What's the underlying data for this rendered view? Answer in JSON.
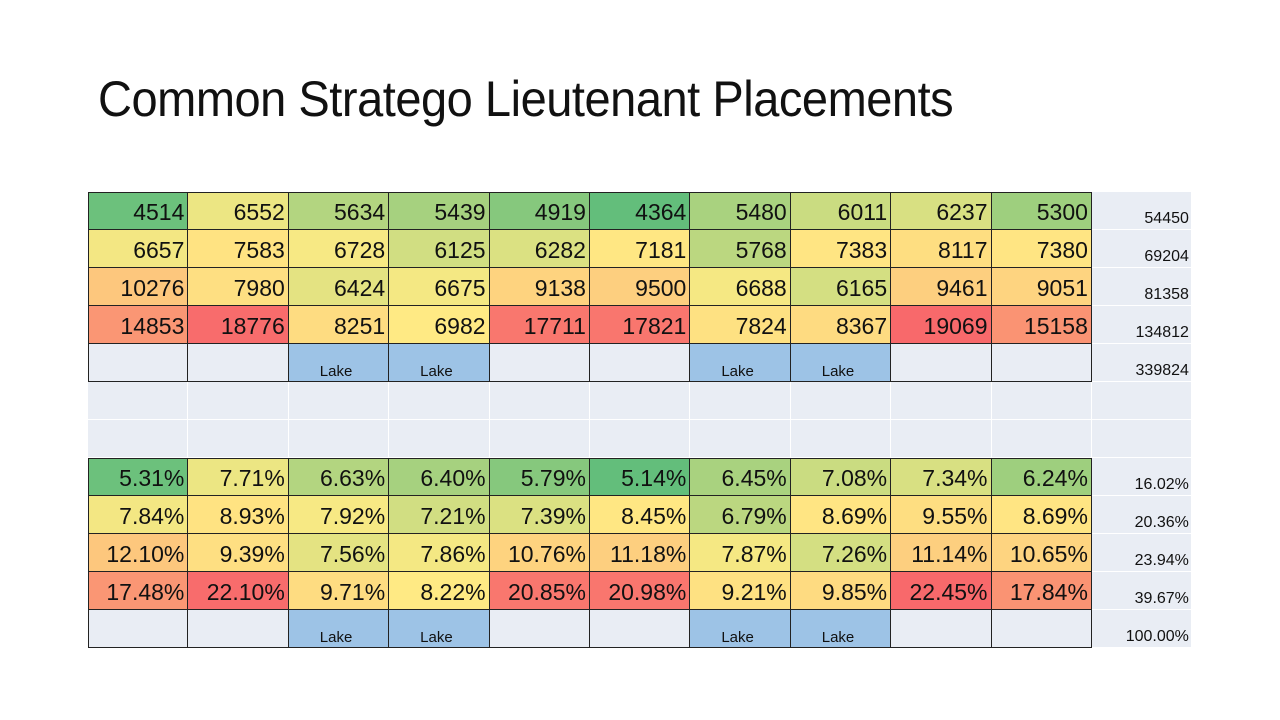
{
  "title": "Common Stratego Lieutenant Placements",
  "color_scale": {
    "min": "#63BE7B",
    "mid": "#FFEB84",
    "max": "#F8696B",
    "lake": "#9DC3E6",
    "empty": "#E9EDF4"
  },
  "counts_table": {
    "rows": [
      {
        "cells": [
          {
            "value": "4514",
            "color": "#6CC17C"
          },
          {
            "value": "6552",
            "color": "#ECE683"
          },
          {
            "value": "5634",
            "color": "#B3D580"
          },
          {
            "value": "5439",
            "color": "#A6D17F"
          },
          {
            "value": "4919",
            "color": "#86C87D"
          },
          {
            "value": "4364",
            "color": "#63BE7B"
          },
          {
            "value": "5480",
            "color": "#A9D27F"
          },
          {
            "value": "6011",
            "color": "#CADC81"
          },
          {
            "value": "6237",
            "color": "#D8E082"
          },
          {
            "value": "5300",
            "color": "#9ECF7E"
          }
        ],
        "total": "54450"
      },
      {
        "cells": [
          {
            "value": "6657",
            "color": "#F3E783"
          },
          {
            "value": "7583",
            "color": "#FFE382"
          },
          {
            "value": "6728",
            "color": "#F7E984"
          },
          {
            "value": "6125",
            "color": "#D1DE82"
          },
          {
            "value": "6282",
            "color": "#DBE182"
          },
          {
            "value": "7181",
            "color": "#FFE783"
          },
          {
            "value": "5768",
            "color": "#BBD780"
          },
          {
            "value": "7383",
            "color": "#FFE583"
          },
          {
            "value": "8117",
            "color": "#FEDE81"
          },
          {
            "value": "7380",
            "color": "#FFE583"
          }
        ],
        "total": "69204"
      },
      {
        "cells": [
          {
            "value": "10276",
            "color": "#FDC77D"
          },
          {
            "value": "7980",
            "color": "#FEDF82"
          },
          {
            "value": "6424",
            "color": "#E4E382"
          },
          {
            "value": "6675",
            "color": "#F4E883"
          },
          {
            "value": "9138",
            "color": "#FED37F"
          },
          {
            "value": "9500",
            "color": "#FDCF7F"
          },
          {
            "value": "6688",
            "color": "#F5E883"
          },
          {
            "value": "6165",
            "color": "#D4DF82"
          },
          {
            "value": "9461",
            "color": "#FDCF7F"
          },
          {
            "value": "9051",
            "color": "#FED480"
          }
        ],
        "total": "81358"
      },
      {
        "cells": [
          {
            "value": "14853",
            "color": "#FA9674"
          },
          {
            "value": "18776",
            "color": "#F86C6C"
          },
          {
            "value": "8251",
            "color": "#FEDC81"
          },
          {
            "value": "6982",
            "color": "#FFEA84"
          },
          {
            "value": "17711",
            "color": "#F9776E"
          },
          {
            "value": "17821",
            "color": "#F9766E"
          },
          {
            "value": "7824",
            "color": "#FEE182"
          },
          {
            "value": "8367",
            "color": "#FEDB81"
          },
          {
            "value": "19069",
            "color": "#F8696B"
          },
          {
            "value": "15158",
            "color": "#FA9373"
          }
        ],
        "total": "134812"
      }
    ],
    "lake_row": {
      "cells": [
        "",
        "",
        "Lake",
        "Lake",
        "",
        "",
        "Lake",
        "Lake",
        "",
        ""
      ],
      "total": "339824"
    }
  },
  "percent_table": {
    "rows": [
      {
        "cells": [
          {
            "value": "5.31%",
            "color": "#6CC17C"
          },
          {
            "value": "7.71%",
            "color": "#ECE683"
          },
          {
            "value": "6.63%",
            "color": "#B3D580"
          },
          {
            "value": "6.40%",
            "color": "#A6D17F"
          },
          {
            "value": "5.79%",
            "color": "#86C87D"
          },
          {
            "value": "5.14%",
            "color": "#63BE7B"
          },
          {
            "value": "6.45%",
            "color": "#A9D27F"
          },
          {
            "value": "7.08%",
            "color": "#CADC81"
          },
          {
            "value": "7.34%",
            "color": "#D8E082"
          },
          {
            "value": "6.24%",
            "color": "#9ECF7E"
          }
        ],
        "total": "16.02%"
      },
      {
        "cells": [
          {
            "value": "7.84%",
            "color": "#F3E783"
          },
          {
            "value": "8.93%",
            "color": "#FFE382"
          },
          {
            "value": "7.92%",
            "color": "#F7E984"
          },
          {
            "value": "7.21%",
            "color": "#D1DE82"
          },
          {
            "value": "7.39%",
            "color": "#DBE182"
          },
          {
            "value": "8.45%",
            "color": "#FFE783"
          },
          {
            "value": "6.79%",
            "color": "#BBD780"
          },
          {
            "value": "8.69%",
            "color": "#FFE583"
          },
          {
            "value": "9.55%",
            "color": "#FEDE81"
          },
          {
            "value": "8.69%",
            "color": "#FFE583"
          }
        ],
        "total": "20.36%"
      },
      {
        "cells": [
          {
            "value": "12.10%",
            "color": "#FDC77D"
          },
          {
            "value": "9.39%",
            "color": "#FEDF82"
          },
          {
            "value": "7.56%",
            "color": "#E4E382"
          },
          {
            "value": "7.86%",
            "color": "#F4E883"
          },
          {
            "value": "10.76%",
            "color": "#FED37F"
          },
          {
            "value": "11.18%",
            "color": "#FDCF7F"
          },
          {
            "value": "7.87%",
            "color": "#F5E883"
          },
          {
            "value": "7.26%",
            "color": "#D4DF82"
          },
          {
            "value": "11.14%",
            "color": "#FDCF7F"
          },
          {
            "value": "10.65%",
            "color": "#FED480"
          }
        ],
        "total": "23.94%"
      },
      {
        "cells": [
          {
            "value": "17.48%",
            "color": "#FA9674"
          },
          {
            "value": "22.10%",
            "color": "#F86C6C"
          },
          {
            "value": "9.71%",
            "color": "#FEDC81"
          },
          {
            "value": "8.22%",
            "color": "#FFEA84"
          },
          {
            "value": "20.85%",
            "color": "#F9776E"
          },
          {
            "value": "20.98%",
            "color": "#F9766E"
          },
          {
            "value": "9.21%",
            "color": "#FEE182"
          },
          {
            "value": "9.85%",
            "color": "#FEDB81"
          },
          {
            "value": "22.45%",
            "color": "#F8696B"
          },
          {
            "value": "17.84%",
            "color": "#FA9373"
          }
        ],
        "total": "39.67%"
      }
    ],
    "lake_row": {
      "cells": [
        "",
        "",
        "Lake",
        "Lake",
        "",
        "",
        "Lake",
        "Lake",
        "",
        ""
      ],
      "total": "100.00%"
    }
  }
}
